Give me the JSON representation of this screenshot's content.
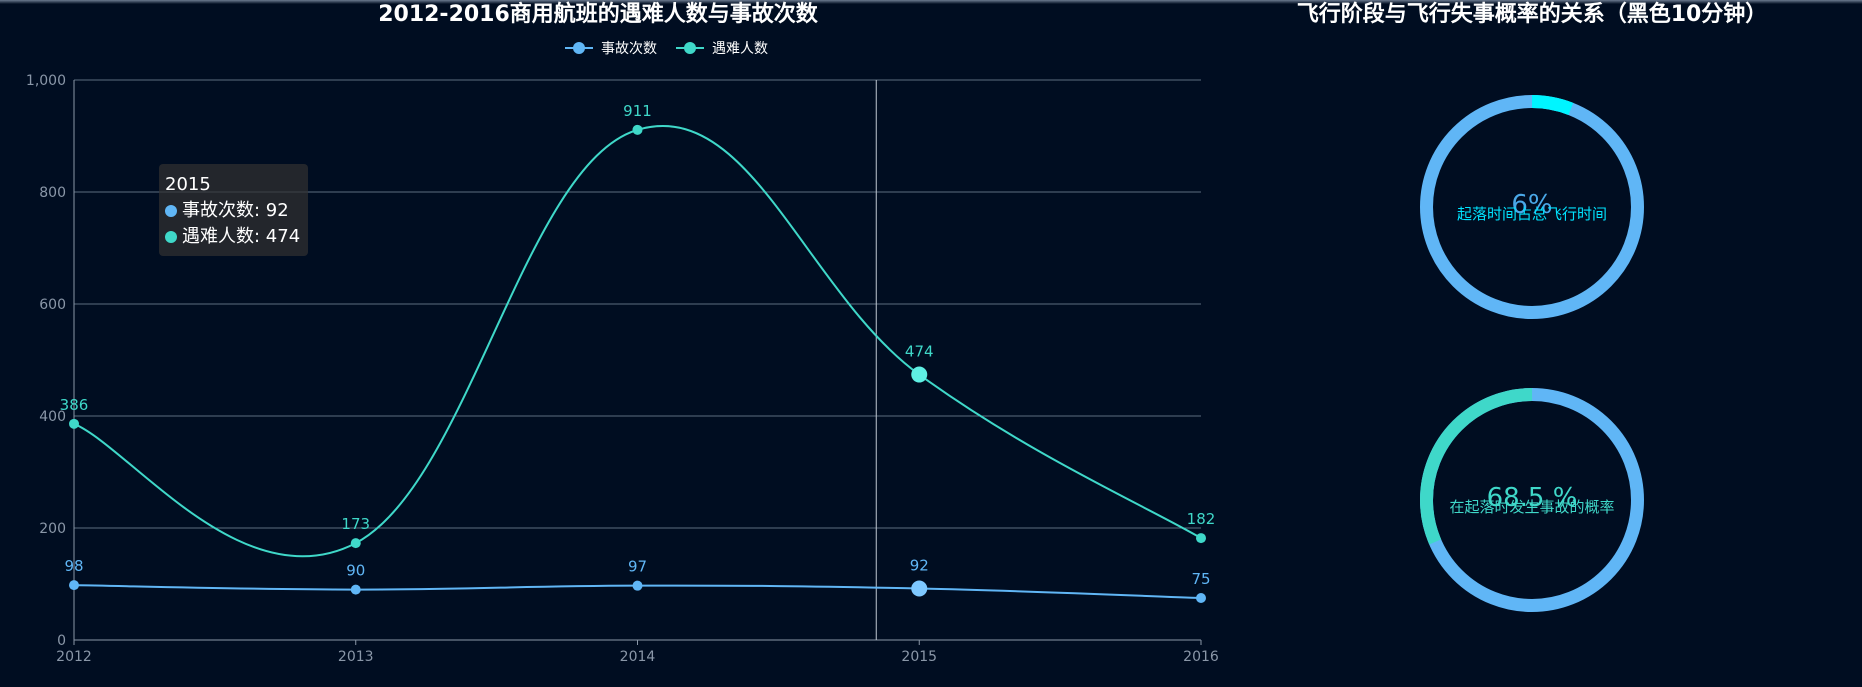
{
  "left_chart": {
    "title": "2012-2016商用航班的遇难人数与事故次数",
    "legend": [
      "事故次数",
      "遇难人数"
    ],
    "tooltip": {
      "header": "2015",
      "rows": [
        {
          "label": "事故次数: 92",
          "color": "#60b6f6"
        },
        {
          "label": "遇难人数: 474",
          "color": "#3fd8c9"
        }
      ]
    }
  },
  "right_chart": {
    "title": "飞行阶段与飞行失事概率的关系（黑色10分钟）",
    "rings": [
      {
        "label": "起落时间占总飞行时间",
        "value_text": "6%",
        "fraction": 0.06,
        "accent": "#00f5ff",
        "rest": "#60b6f6",
        "label_color": "#00e3ff",
        "value_color": "#4aa8e8"
      },
      {
        "label": "在起落时发生事故的概率",
        "value_text": "68.5 %",
        "fraction": 0.685,
        "accent": "#60b6f6",
        "rest": "#3fd8c9",
        "label_color": "#3fd8c9",
        "value_color": "#3fd8c9"
      }
    ]
  },
  "chart_data": [
    {
      "type": "line",
      "title": "2012-2016商用航班的遇难人数与事故次数",
      "categories": [
        "2012",
        "2013",
        "2014",
        "2015",
        "2016"
      ],
      "ylim": [
        0,
        1000
      ],
      "yticks": [
        "0",
        "200",
        "400",
        "600",
        "800",
        "1,000"
      ],
      "grid": true,
      "smooth": true,
      "legend_position": "top-center",
      "series": [
        {
          "name": "事故次数",
          "values": [
            98,
            90,
            97,
            92,
            75
          ],
          "color": "#60b6f6"
        },
        {
          "name": "遇难人数",
          "values": [
            386,
            173,
            911,
            474,
            182
          ],
          "color": "#3fd8c9"
        }
      ],
      "highlight_category": "2015"
    },
    {
      "type": "pie",
      "title": "飞行阶段与飞行失事概率的关系（黑色10分钟）",
      "slices": [
        {
          "label": "起落时间占总飞行时间",
          "value": 6
        }
      ]
    },
    {
      "type": "pie",
      "slices": [
        {
          "label": "在起落时发生事故的概率",
          "value": 68.5
        }
      ]
    }
  ]
}
